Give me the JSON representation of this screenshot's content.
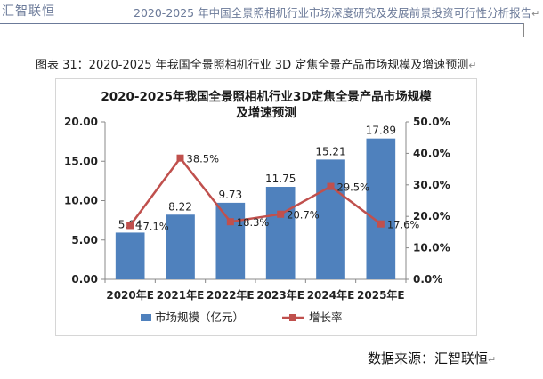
{
  "header": {
    "brand": "汇智联恒",
    "title": "2020-2025 年中国全景照相机行业市场深度研究及发展前景投资可行性分析报告",
    "para_mark": "↵"
  },
  "figure": {
    "caption": "图表 31：2020-2025 年我国全景照相机行业 3D 定焦全景产品市场规模及增速预测",
    "para_mark": "↵"
  },
  "source": {
    "text": "数据来源：汇智联恒",
    "para_mark": "↵"
  },
  "chart_data": {
    "type": "bar",
    "title_lines": [
      "2020-2025年我国全景照相机行业3D定焦全景产品市场规模",
      "及增速预测"
    ],
    "categories": [
      "2020年E",
      "2021年E",
      "2022年E",
      "2023年E",
      "2024年E",
      "2025年E"
    ],
    "series": [
      {
        "name": "市场规模（亿元）",
        "type": "bar",
        "axis": "left",
        "values": [
          5.94,
          8.22,
          9.73,
          11.75,
          15.21,
          17.89
        ],
        "labels": [
          "5.94",
          "8.22",
          "9.73",
          "11.75",
          "15.21",
          "17.89"
        ]
      },
      {
        "name": "增长率",
        "type": "line",
        "axis": "right",
        "values": [
          17.1,
          38.5,
          18.3,
          20.7,
          29.5,
          17.6
        ],
        "labels": [
          "17.1%",
          "38.5%",
          "18.3%",
          "20.7%",
          "29.5%",
          "17.6%"
        ]
      }
    ],
    "y_left": {
      "min": 0,
      "max": 20,
      "ticks": [
        "0.00",
        "5.00",
        "10.00",
        "15.00",
        "20.00"
      ]
    },
    "y_right": {
      "min": 0,
      "max": 50,
      "ticks": [
        "0.0%",
        "10.0%",
        "20.0%",
        "30.0%",
        "40.0%",
        "50.0%"
      ]
    },
    "legend_position": "bottom",
    "grid": false,
    "colors": {
      "bar": "#4f81bd",
      "line": "#c0504d"
    }
  }
}
